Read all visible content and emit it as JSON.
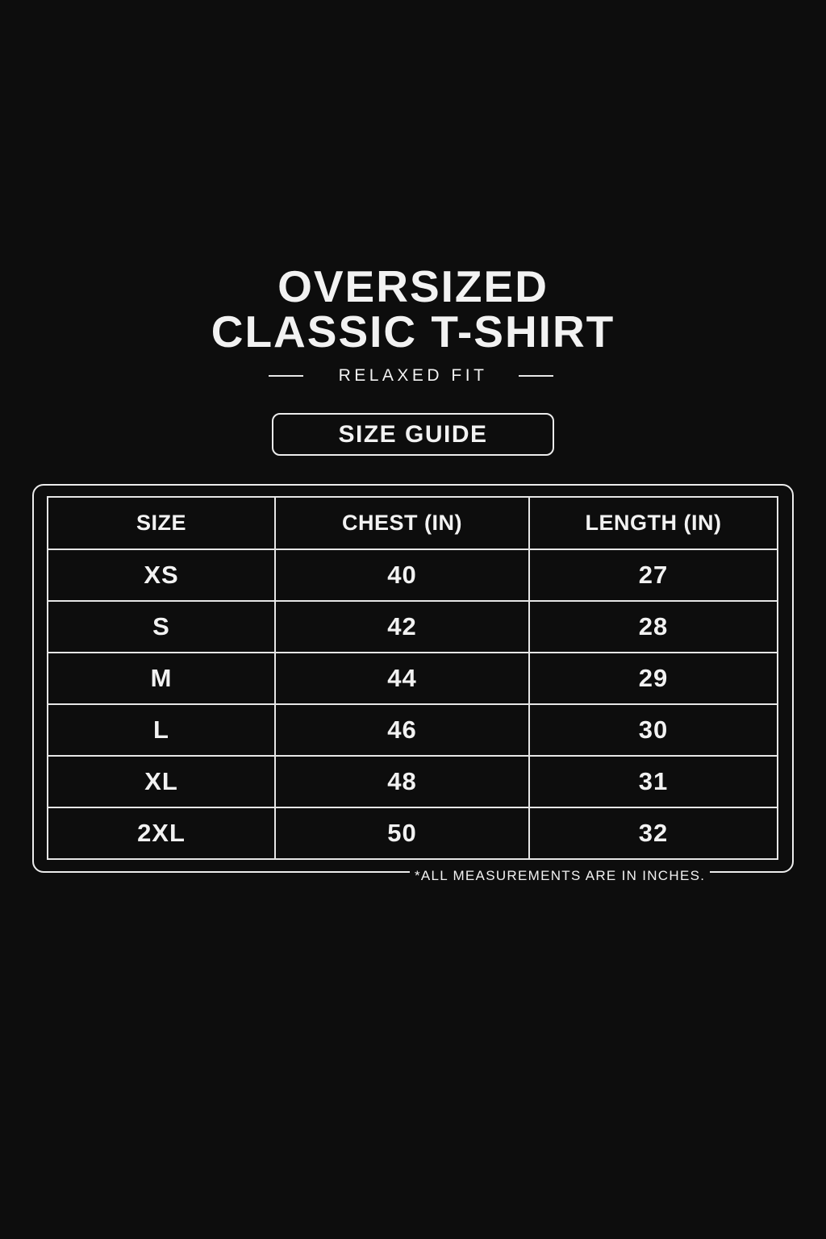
{
  "title_line1": "OVERSIZED",
  "title_line2": "CLASSIC T-SHIRT",
  "subtitle": "RELAXED FIT",
  "badge": "SIZE GUIDE",
  "table": {
    "headers": [
      "SIZE",
      "CHEST (IN)",
      "LENGTH (IN)"
    ],
    "rows": [
      [
        "XS",
        "40",
        "27"
      ],
      [
        "S",
        "42",
        "28"
      ],
      [
        "M",
        "44",
        "29"
      ],
      [
        "L",
        "46",
        "30"
      ],
      [
        "XL",
        "48",
        "31"
      ],
      [
        "2XL",
        "50",
        "32"
      ]
    ]
  },
  "footnote": "*ALL MEASUREMENTS ARE IN INCHES.",
  "colors": {
    "background": "#0d0d0d",
    "foreground": "#f2f2f2"
  }
}
